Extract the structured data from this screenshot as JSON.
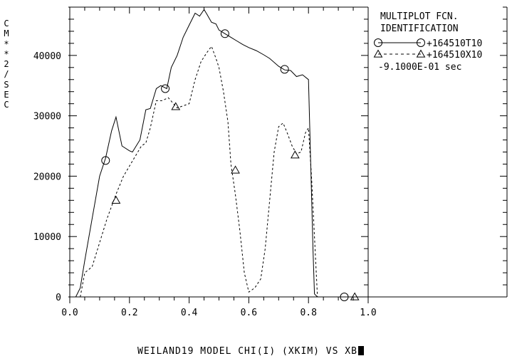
{
  "chart_data": {
    "type": "line",
    "title": "WEILAND19 MODEL CHI(I) (XKIM) VS XB",
    "ylabel": "CM**2/SEC",
    "xlim": [
      0.0,
      1.0
    ],
    "ylim": [
      0,
      48000
    ],
    "x_ticks": [
      0.0,
      0.2,
      0.4,
      0.6,
      0.8,
      1.0
    ],
    "x_tick_labels": [
      "0.0",
      "0.2",
      "0.4",
      "0.6",
      "0.8",
      "1.0"
    ],
    "y_ticks": [
      0,
      10000,
      20000,
      30000,
      40000
    ],
    "y_tick_labels": [
      "0",
      "10000",
      "20000",
      "30000",
      "40000"
    ],
    "legend": {
      "heading": [
        "MULTIPLOT FCN.",
        "IDENTIFICATION"
      ],
      "time_label": "-9.1000E-01 sec",
      "placement": "right"
    },
    "series": [
      {
        "name": "+164510T10",
        "marker": "circle",
        "dash": "solid",
        "x": [
          0.02,
          0.035,
          0.05,
          0.075,
          0.1,
          0.12,
          0.14,
          0.155,
          0.175,
          0.2,
          0.21,
          0.235,
          0.255,
          0.27,
          0.29,
          0.305,
          0.325,
          0.34,
          0.36,
          0.38,
          0.4,
          0.42,
          0.435,
          0.45,
          0.46,
          0.475,
          0.49,
          0.5,
          0.52,
          0.54,
          0.56,
          0.58,
          0.6,
          0.625,
          0.65,
          0.67,
          0.7,
          0.72,
          0.74,
          0.76,
          0.78,
          0.8,
          0.815,
          0.82,
          0.83
        ],
        "y": [
          0,
          1500,
          6000,
          13000,
          20000,
          23000,
          27500,
          29800,
          25000,
          24200,
          24000,
          26000,
          31000,
          31200,
          34500,
          35000,
          34500,
          38000,
          40000,
          43000,
          45000,
          47000,
          46500,
          47600,
          46800,
          45500,
          45200,
          44200,
          43600,
          43000,
          42400,
          41800,
          41300,
          40800,
          40100,
          39500,
          38200,
          37600,
          37500,
          36500,
          36800,
          36000,
          8000,
          500,
          0
        ],
        "markers": [
          [
            0.12,
            22600
          ],
          [
            0.32,
            34500
          ],
          [
            0.52,
            43600
          ],
          [
            0.72,
            37700
          ],
          [
            0.92,
            0
          ]
        ]
      },
      {
        "name": "+164510X10",
        "marker": "triangle",
        "dash": "dashed",
        "x": [
          0.035,
          0.05,
          0.075,
          0.1,
          0.125,
          0.155,
          0.18,
          0.21,
          0.24,
          0.255,
          0.27,
          0.29,
          0.31,
          0.33,
          0.36,
          0.4,
          0.42,
          0.44,
          0.46,
          0.475,
          0.49,
          0.5,
          0.515,
          0.53,
          0.54,
          0.555,
          0.57,
          0.585,
          0.6,
          0.62,
          0.64,
          0.655,
          0.67,
          0.685,
          0.7,
          0.715,
          0.73,
          0.745,
          0.76,
          0.775,
          0.79,
          0.8,
          0.81,
          0.83
        ],
        "y": [
          0,
          4000,
          5000,
          9000,
          13000,
          17000,
          20000,
          22500,
          25000,
          25500,
          28000,
          32500,
          32500,
          33000,
          31300,
          32000,
          36000,
          39000,
          40500,
          41500,
          39500,
          38000,
          34000,
          29000,
          22000,
          17000,
          11000,
          4000,
          800,
          1500,
          3000,
          8000,
          16000,
          24000,
          28200,
          28800,
          27000,
          25000,
          23700,
          24000,
          27200,
          28000,
          20000,
          0
        ],
        "markers": [
          [
            0.155,
            16000
          ],
          [
            0.355,
            31500
          ],
          [
            0.555,
            21000
          ],
          [
            0.755,
            23500
          ],
          [
            0.955,
            0
          ]
        ]
      }
    ]
  }
}
